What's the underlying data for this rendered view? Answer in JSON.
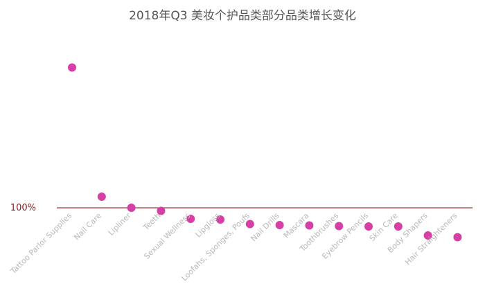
{
  "chart_data": {
    "type": "scatter",
    "title": "2018年Q3 美妆个护品类部分品类增长变化",
    "xlabel": "",
    "ylabel": "",
    "grid": false,
    "legend": "none",
    "reference_line": {
      "label": "100%",
      "value": 100,
      "color": "#8b1a1a"
    },
    "categories": [
      "Tattoo Parlor Supplies",
      "Nail Care",
      "Lipliner",
      "Teeth",
      "Sexual Wellness",
      "Lipgloss",
      "Loofahs, Sponges, Poufs",
      "Nail Drills",
      "Mascara",
      "Toothbrushes",
      "Eyebrow Pencils",
      "Skin Care",
      "Body Shapers",
      "Hair Straighteners"
    ],
    "series": [
      {
        "values": [
          505,
          132,
          100,
          91,
          68,
          66,
          53,
          50,
          49,
          47,
          46,
          46,
          20,
          15
        ],
        "color": "#d63fa6"
      }
    ],
    "ylim": [
      0,
      620
    ]
  }
}
